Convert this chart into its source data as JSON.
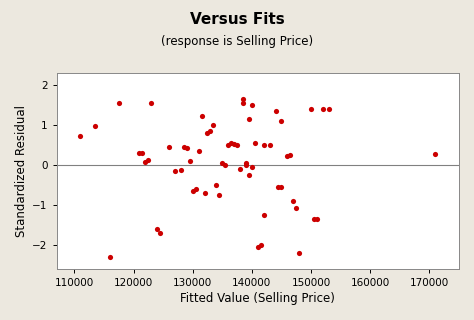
{
  "title": "Versus Fits",
  "subtitle": "(response is Selling Price)",
  "xlabel": "Fitted Value (Selling Price)",
  "ylabel": "Standardized Residual",
  "xlim": [
    107000,
    175000
  ],
  "ylim": [
    -2.6,
    2.3
  ],
  "xticks": [
    110000,
    120000,
    130000,
    140000,
    150000,
    160000,
    170000
  ],
  "yticks": [
    -2,
    -1,
    0,
    1,
    2
  ],
  "background_color": "#ece8df",
  "plot_bg_color": "#ffffff",
  "dot_color": "#cc0000",
  "dot_size": 14,
  "x_data": [
    111000,
    113500,
    116000,
    117500,
    121000,
    121500,
    122000,
    122500,
    123000,
    124000,
    124500,
    126000,
    127000,
    128000,
    128500,
    129000,
    129500,
    130000,
    130500,
    131000,
    131500,
    132000,
    132500,
    133000,
    133500,
    134000,
    134500,
    135000,
    135500,
    136000,
    136500,
    137000,
    137500,
    138000,
    138500,
    138500,
    139000,
    139000,
    139500,
    139500,
    140000,
    140000,
    140500,
    141000,
    141500,
    142000,
    142000,
    143000,
    144000,
    144500,
    145000,
    145000,
    146000,
    146500,
    147000,
    147500,
    148000,
    150000,
    150500,
    151000,
    152000,
    153000,
    171000
  ],
  "y_data": [
    0.72,
    0.97,
    -2.3,
    1.55,
    0.28,
    0.3,
    0.07,
    0.12,
    1.55,
    -1.6,
    -1.7,
    0.43,
    -0.15,
    -0.13,
    0.45,
    0.42,
    0.1,
    -0.65,
    -0.6,
    0.35,
    1.22,
    -0.7,
    0.78,
    0.85,
    1.0,
    -0.5,
    -0.75,
    0.05,
    -0.02,
    0.5,
    0.55,
    0.52,
    0.5,
    -0.1,
    1.55,
    1.65,
    0.0,
    0.03,
    -0.25,
    1.15,
    -0.05,
    1.48,
    0.55,
    -2.05,
    -2.0,
    -1.25,
    0.5,
    0.5,
    1.35,
    -0.55,
    -0.55,
    1.08,
    0.22,
    0.23,
    -0.9,
    -1.08,
    -2.2,
    1.38,
    -1.35,
    -1.35,
    1.4,
    1.38,
    0.27
  ]
}
